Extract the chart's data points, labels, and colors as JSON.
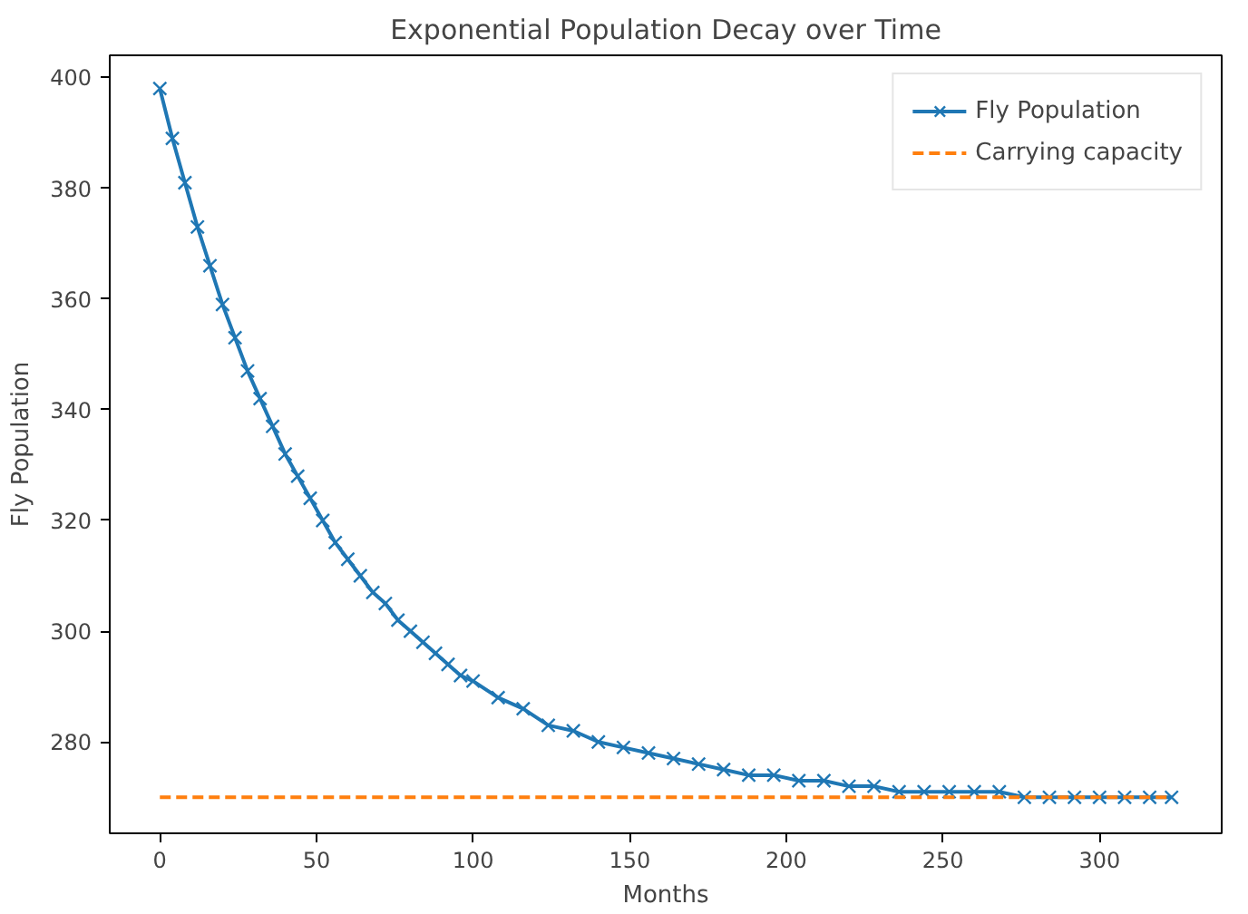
{
  "chart_data": {
    "type": "line",
    "title": "Exponential Population Decay over Time",
    "xlabel": "Months",
    "ylabel": "Fly Population",
    "xlim": [
      -16,
      339
    ],
    "ylim": [
      263.5,
      404
    ],
    "xticks": [
      0,
      50,
      100,
      150,
      200,
      250,
      300
    ],
    "yticks": [
      280,
      300,
      320,
      340,
      360,
      380,
      400
    ],
    "grid": false,
    "legend": "top right",
    "series": [
      {
        "name": "Fly Population",
        "color": "#1f77b4",
        "marker": "cross",
        "line_style": "solid",
        "x": [
          0,
          4,
          8,
          12,
          16,
          20,
          24,
          28,
          32,
          36,
          40,
          44,
          48,
          52,
          56,
          60,
          64,
          68,
          72,
          76,
          80,
          84,
          88,
          92,
          96,
          100,
          108,
          116,
          124,
          132,
          140,
          148,
          156,
          164,
          172,
          180,
          188,
          196,
          204,
          212,
          220,
          228,
          236,
          244,
          252,
          260,
          268,
          276,
          284,
          292,
          300,
          308,
          316,
          323
        ],
        "values": [
          398,
          389,
          381,
          373,
          366,
          359,
          353,
          347,
          342,
          337,
          332,
          328,
          324,
          320,
          316,
          313,
          310,
          307,
          305,
          302,
          300,
          298,
          296,
          294,
          292,
          291,
          288,
          286,
          283,
          282,
          280,
          279,
          278,
          277,
          276,
          275,
          274,
          274,
          273,
          273,
          272,
          272,
          271,
          271,
          271,
          271,
          271,
          270,
          270,
          270,
          270,
          270,
          270,
          270
        ]
      },
      {
        "name": "Carrying capacity",
        "color": "#ff7f0e",
        "marker": "none",
        "line_style": "dashed",
        "x": [
          0,
          323
        ],
        "values": [
          270,
          270
        ]
      }
    ]
  }
}
